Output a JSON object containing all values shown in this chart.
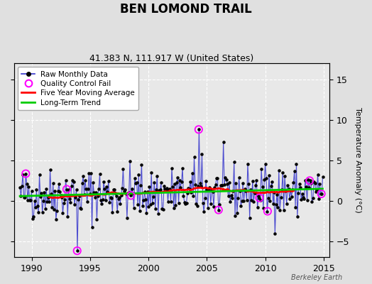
{
  "title": "BEN LOMOND TRAIL",
  "subtitle": "41.383 N, 111.917 W (United States)",
  "ylabel": "Temperature Anomaly (°C)",
  "watermark": "Berkeley Earth",
  "xlim": [
    1988.5,
    2015.5
  ],
  "ylim": [
    -7,
    17
  ],
  "yticks": [
    -5,
    0,
    5,
    10,
    15
  ],
  "xticks": [
    1990,
    1995,
    2000,
    2005,
    2010,
    2015
  ],
  "bg_color": "#e0e0e0",
  "plot_bg_color": "#e8e8e8",
  "line_color": "#3333cc",
  "moving_avg_color": "#ff0000",
  "trend_color": "#00cc00",
  "qc_color": "#ff00ff",
  "title_fontsize": 12,
  "subtitle_fontsize": 9,
  "seed": 42
}
